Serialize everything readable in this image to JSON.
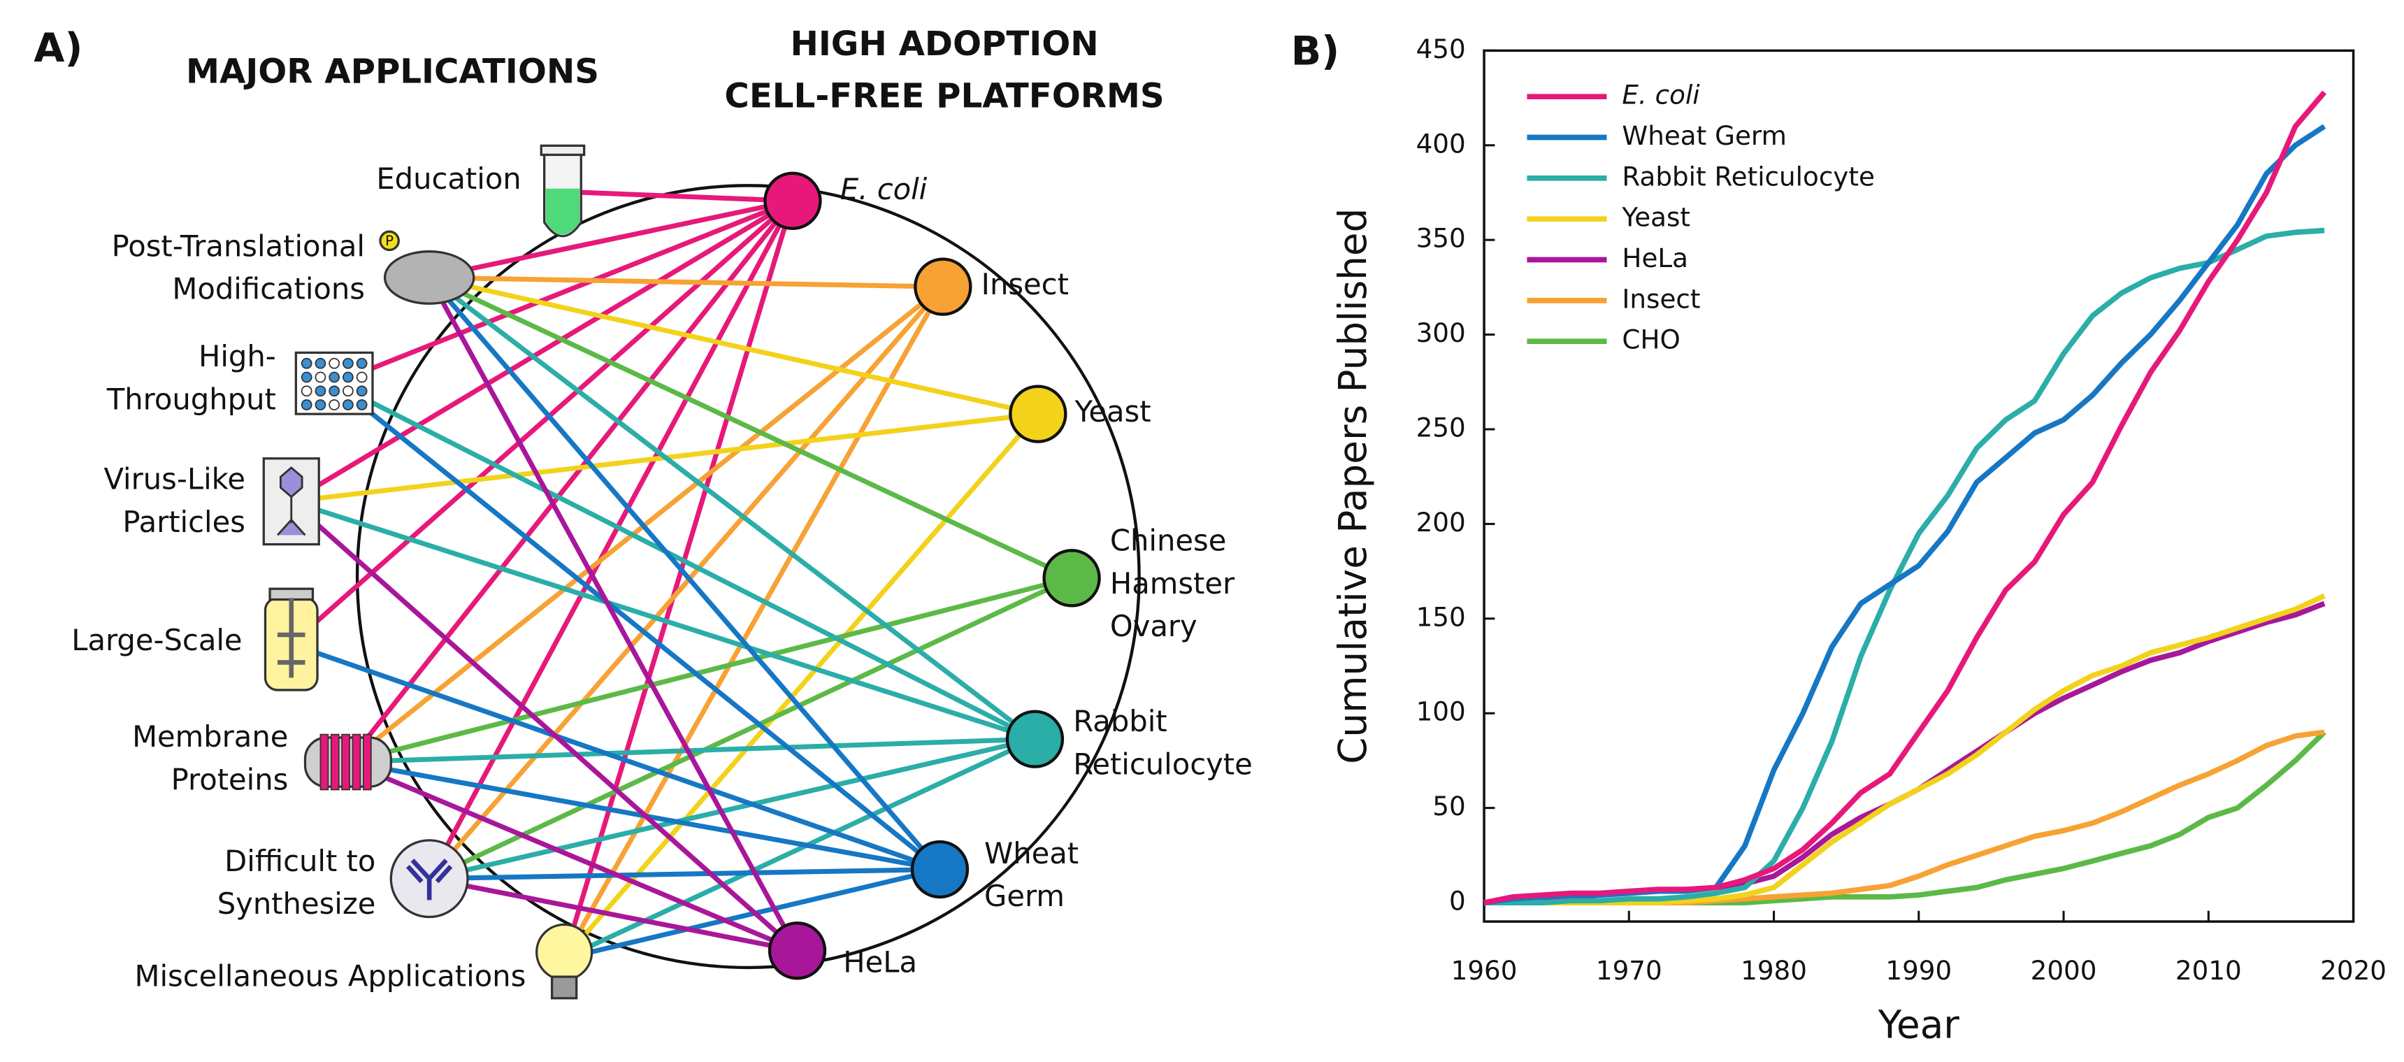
{
  "panel_a": {
    "panel_label": "A)",
    "left_title": "MAJOR APPLICATIONS",
    "right_title": [
      "HIGH ADOPTION",
      "CELL-FREE PLATFORMS"
    ],
    "ptm_badge": "P",
    "applications": [
      {
        "label": [
          "Education"
        ]
      },
      {
        "label": [
          "Post-Translational",
          "Modifications"
        ]
      },
      {
        "label": [
          "High-",
          "Throughput"
        ]
      },
      {
        "label": [
          "Virus-Like",
          "Particles"
        ]
      },
      {
        "label": [
          "Large-Scale"
        ]
      },
      {
        "label": [
          "Membrane",
          "Proteins"
        ]
      },
      {
        "label": [
          "Difficult to",
          "Synthesize"
        ]
      },
      {
        "label": [
          "Miscellaneous Applications"
        ]
      }
    ],
    "platforms": [
      {
        "label": [
          "E. coli"
        ],
        "color": "#e6197a"
      },
      {
        "label": [
          "Insect"
        ],
        "color": "#f7a234"
      },
      {
        "label": [
          "Yeast"
        ],
        "color": "#f2d21b"
      },
      {
        "label": [
          "Chinese",
          "Hamster",
          "Ovary"
        ],
        "color": "#5cb947"
      },
      {
        "label": [
          "Rabbit",
          "Reticulocyte"
        ],
        "color": "#2bada8"
      },
      {
        "label": [
          "Wheat",
          "Germ"
        ],
        "color": "#1677c4"
      },
      {
        "label": [
          "HeLa"
        ],
        "color": "#a8179a"
      }
    ],
    "edges": [
      [
        0,
        0
      ],
      [
        1,
        0
      ],
      [
        2,
        0
      ],
      [
        3,
        0
      ],
      [
        4,
        0
      ],
      [
        5,
        0
      ],
      [
        6,
        0
      ],
      [
        7,
        0
      ],
      [
        1,
        1
      ],
      [
        5,
        1
      ],
      [
        6,
        1
      ],
      [
        7,
        1
      ],
      [
        1,
        2
      ],
      [
        3,
        2
      ],
      [
        7,
        2
      ],
      [
        1,
        3
      ],
      [
        5,
        3
      ],
      [
        6,
        3
      ],
      [
        1,
        4
      ],
      [
        2,
        4
      ],
      [
        3,
        4
      ],
      [
        5,
        4
      ],
      [
        6,
        4
      ],
      [
        7,
        4
      ],
      [
        1,
        5
      ],
      [
        2,
        5
      ],
      [
        4,
        5
      ],
      [
        5,
        5
      ],
      [
        6,
        5
      ],
      [
        7,
        5
      ],
      [
        1,
        6
      ],
      [
        3,
        6
      ],
      [
        5,
        6
      ],
      [
        6,
        6
      ]
    ]
  },
  "chart_data": {
    "type": "line",
    "panel_label": "B)",
    "x_label": "Year",
    "y_label": "Cumulative Papers Published",
    "xlim": [
      1960,
      2020
    ],
    "xticks": [
      1960,
      1970,
      1980,
      1990,
      2000,
      2010,
      2020
    ],
    "ylim": [
      -10,
      450
    ],
    "yticks": [
      0,
      50,
      100,
      150,
      200,
      250,
      300,
      350,
      400,
      450
    ],
    "legend": "upper-left",
    "x": [
      1960,
      1962,
      1964,
      1966,
      1968,
      1970,
      1972,
      1974,
      1976,
      1978,
      1980,
      1982,
      1984,
      1986,
      1988,
      1990,
      1992,
      1994,
      1996,
      1998,
      2000,
      2002,
      2004,
      2006,
      2008,
      2010,
      2012,
      2014,
      2016,
      2018
    ],
    "series": [
      {
        "name": "E. coli",
        "color": "#e6197a",
        "values": [
          0,
          3,
          4,
          5,
          5,
          6,
          7,
          7,
          8,
          12,
          18,
          28,
          42,
          58,
          68,
          90,
          112,
          140,
          165,
          180,
          205,
          222,
          252,
          280,
          302,
          328,
          350,
          375,
          410,
          428
        ]
      },
      {
        "name": "Wheat Germ",
        "color": "#1677c4",
        "values": [
          0,
          2,
          3,
          4,
          4,
          5,
          6,
          6,
          8,
          30,
          70,
          100,
          135,
          158,
          168,
          178,
          196,
          222,
          235,
          248,
          255,
          268,
          285,
          300,
          318,
          338,
          358,
          385,
          400,
          410
        ]
      },
      {
        "name": "Rabbit Reticulocyte",
        "color": "#2bada8",
        "values": [
          0,
          0,
          0,
          1,
          1,
          2,
          2,
          3,
          5,
          8,
          22,
          50,
          85,
          130,
          165,
          195,
          215,
          240,
          255,
          265,
          290,
          310,
          322,
          330,
          335,
          338,
          345,
          352,
          354,
          355
        ]
      },
      {
        "name": "Yeast",
        "color": "#f2d21b",
        "values": [
          0,
          0,
          0,
          0,
          0,
          0,
          0,
          1,
          2,
          4,
          8,
          20,
          32,
          42,
          52,
          60,
          68,
          78,
          90,
          102,
          112,
          120,
          125,
          132,
          136,
          140,
          145,
          150,
          155,
          162
        ]
      },
      {
        "name": "HeLa",
        "color": "#a8179a",
        "values": [
          0,
          1,
          2,
          3,
          4,
          5,
          6,
          7,
          8,
          10,
          14,
          24,
          36,
          45,
          52,
          60,
          70,
          80,
          90,
          100,
          108,
          115,
          122,
          128,
          132,
          138,
          143,
          148,
          152,
          158
        ]
      },
      {
        "name": "Insect",
        "color": "#f7a234",
        "values": [
          0,
          0,
          0,
          0,
          0,
          0,
          0,
          0,
          1,
          2,
          3,
          4,
          5,
          7,
          9,
          14,
          20,
          25,
          30,
          35,
          38,
          42,
          48,
          55,
          62,
          68,
          75,
          83,
          88,
          90
        ]
      },
      {
        "name": "CHO",
        "color": "#5cb947",
        "values": [
          0,
          0,
          0,
          0,
          0,
          0,
          0,
          0,
          0,
          0,
          1,
          2,
          3,
          3,
          3,
          4,
          6,
          8,
          12,
          15,
          18,
          22,
          26,
          30,
          36,
          45,
          50,
          62,
          75,
          90
        ]
      }
    ]
  }
}
